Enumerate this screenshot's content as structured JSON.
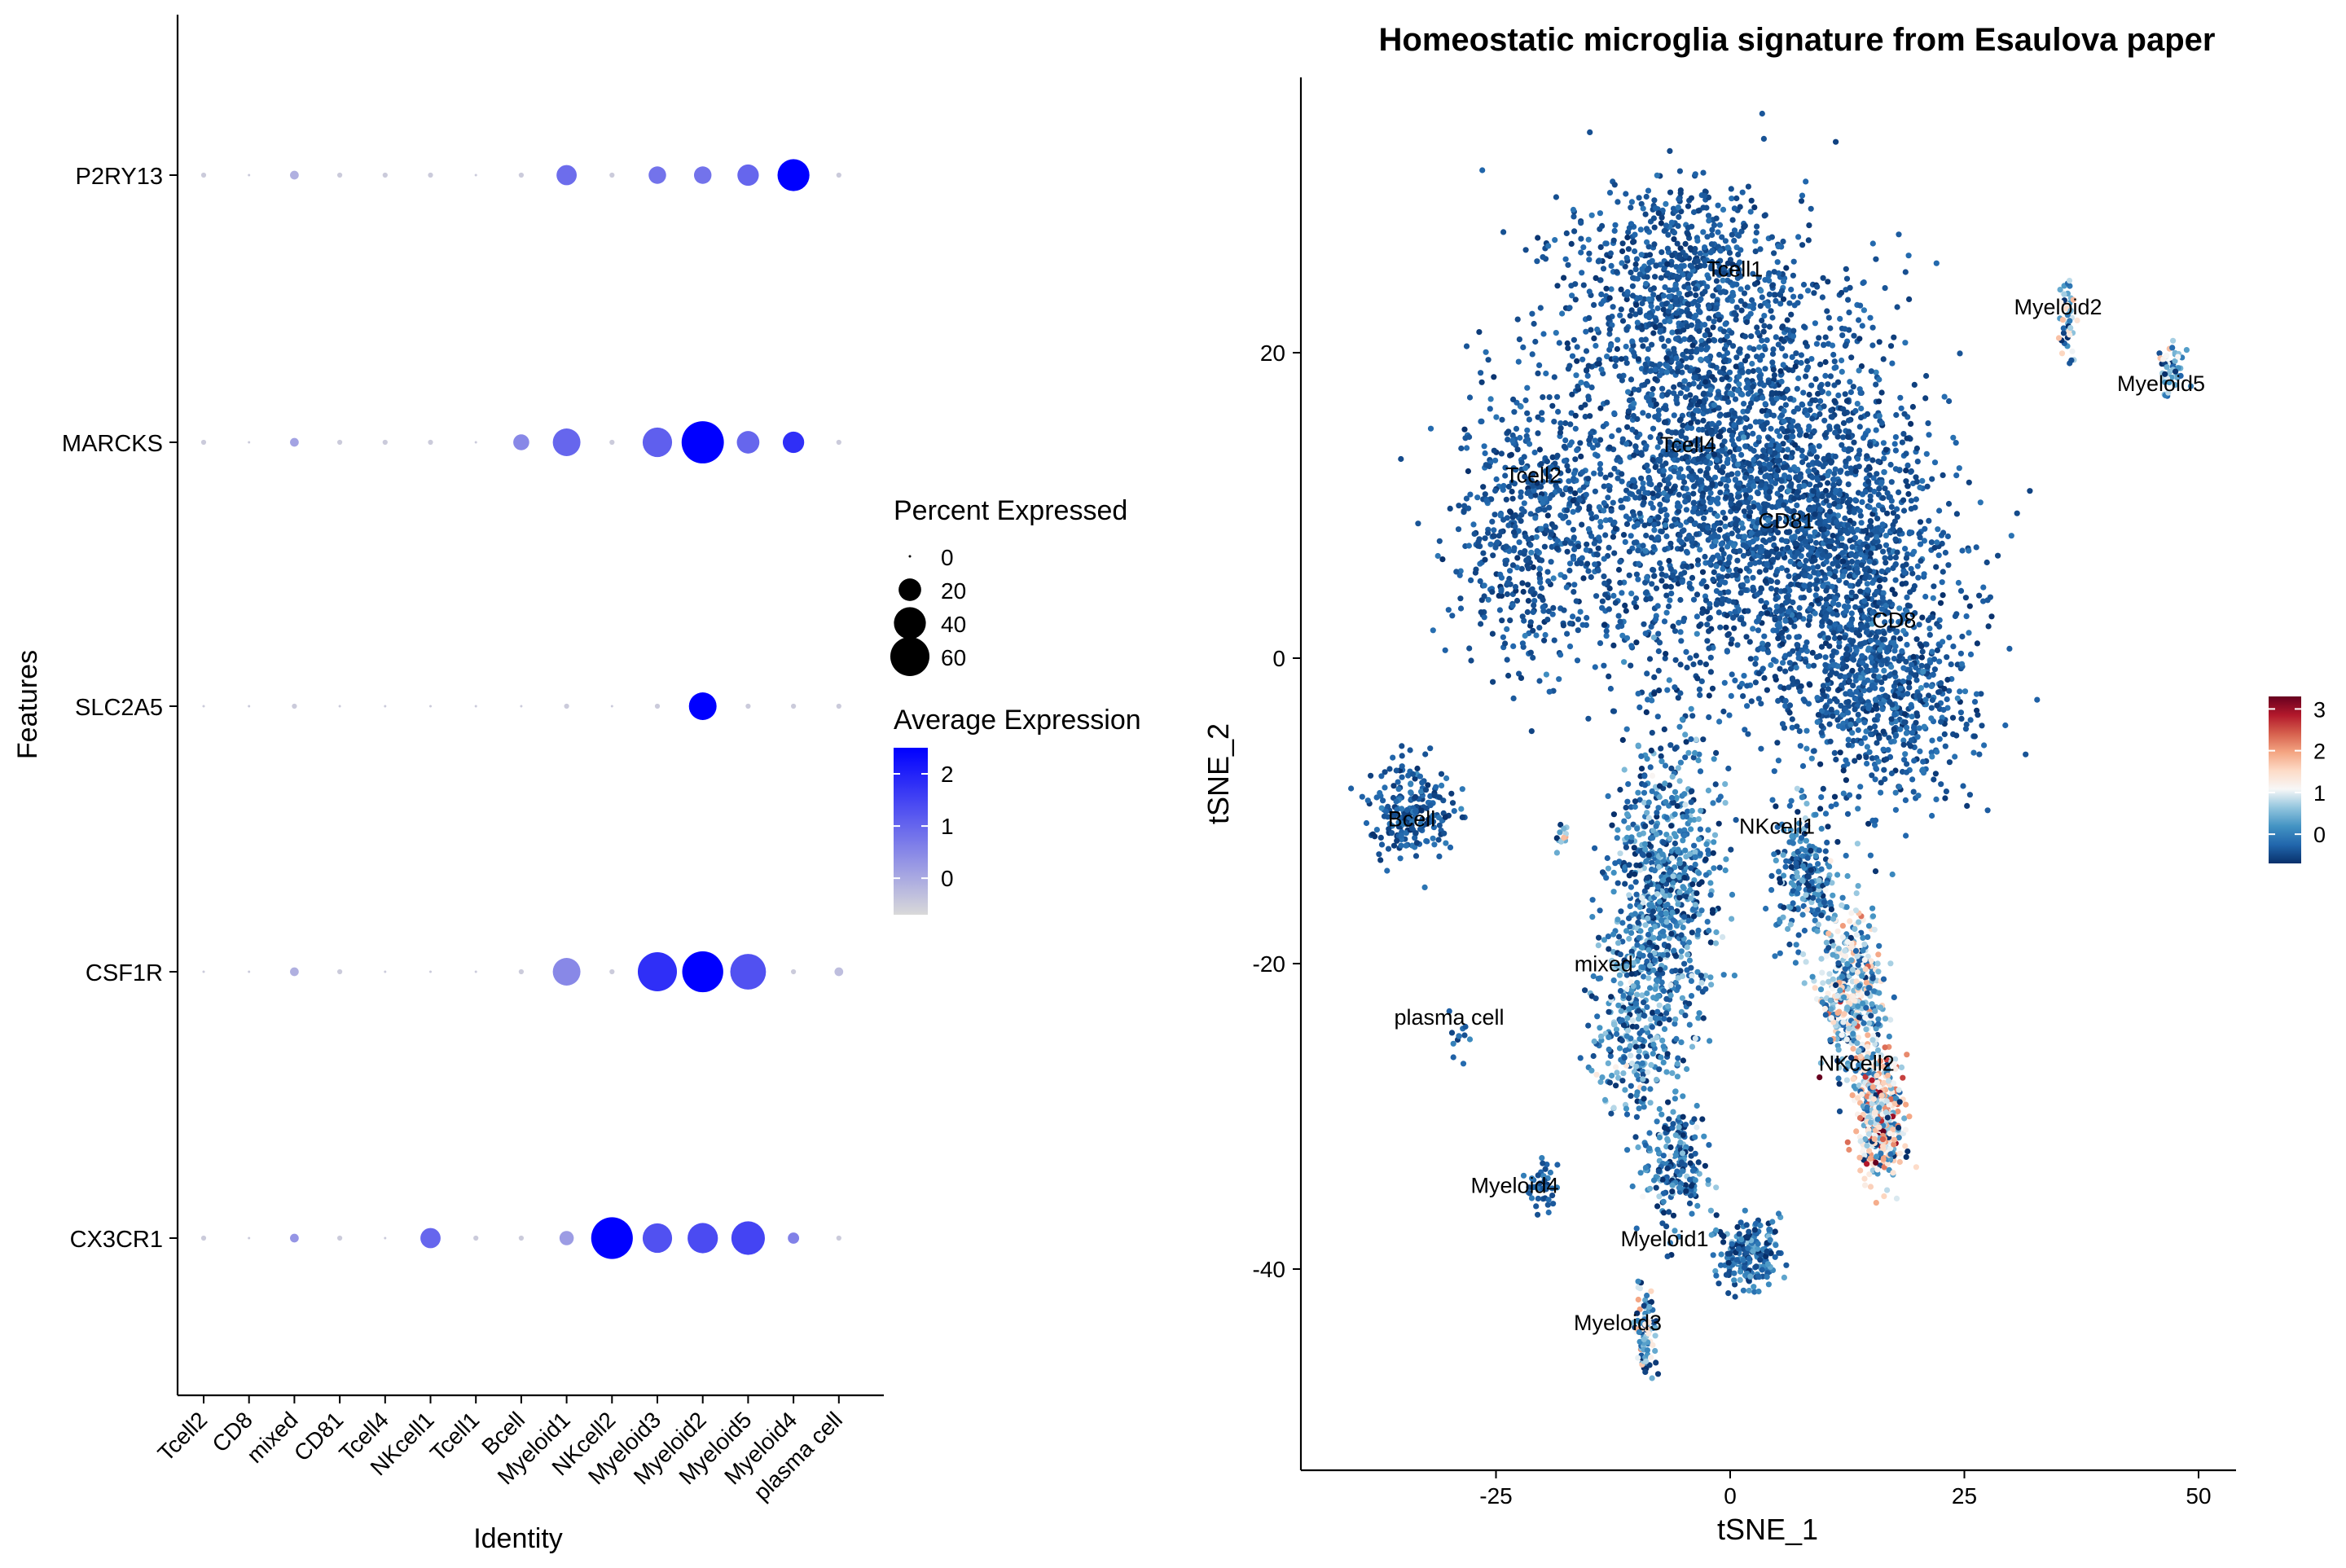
{
  "chart_data": [
    {
      "type": "dotplot",
      "xlabel": "Identity",
      "ylabel": "Features",
      "categories": [
        "Tcell2",
        "CD8",
        "mixed",
        "CD81",
        "Tcell4",
        "NKcell1",
        "Tcell1",
        "Bcell",
        "Myeloid1",
        "NKcell2",
        "Myeloid3",
        "Myeloid2",
        "Myeloid5",
        "Myeloid4",
        "plasma cell"
      ],
      "features": [
        "P2RY13",
        "MARCKS",
        "SLC2A5",
        "CSF1R",
        "CX3CR1"
      ],
      "legend_size": {
        "title": "Percent Expressed",
        "values": [
          0,
          20,
          40,
          60
        ]
      },
      "legend_color": {
        "title": "Average Expression",
        "ticks": [
          2,
          1,
          0
        ],
        "range": [
          -0.7,
          2.5
        ],
        "low_color": "#d9d9d9",
        "high_color": "#0000ff"
      },
      "points": [
        {
          "feature": "P2RY13",
          "cells": [
            [
              1,
              -0.5
            ],
            [
              0,
              -0.5
            ],
            [
              3,
              -0.1
            ],
            [
              1,
              -0.5
            ],
            [
              1,
              -0.5
            ],
            [
              1,
              -0.5
            ],
            [
              0,
              -0.5
            ],
            [
              1,
              -0.5
            ],
            [
              16,
              0.9
            ],
            [
              1,
              -0.5
            ],
            [
              12,
              0.8
            ],
            [
              12,
              0.8
            ],
            [
              18,
              1.0
            ],
            [
              40,
              2.5
            ],
            [
              1,
              -0.5
            ]
          ]
        },
        {
          "feature": "MARCKS",
          "cells": [
            [
              1,
              -0.5
            ],
            [
              0,
              -0.5
            ],
            [
              3,
              0.1
            ],
            [
              1,
              -0.5
            ],
            [
              1,
              -0.5
            ],
            [
              1,
              -0.5
            ],
            [
              0,
              -0.5
            ],
            [
              10,
              0.5
            ],
            [
              30,
              1.0
            ],
            [
              1,
              -0.5
            ],
            [
              34,
              1.1
            ],
            [
              70,
              2.5
            ],
            [
              20,
              1.0
            ],
            [
              18,
              1.8
            ],
            [
              1,
              -0.5
            ]
          ]
        },
        {
          "feature": "SLC2A5",
          "cells": [
            [
              0,
              -0.5
            ],
            [
              0,
              -0.5
            ],
            [
              1,
              -0.5
            ],
            [
              0,
              -0.5
            ],
            [
              0,
              -0.5
            ],
            [
              0,
              -0.5
            ],
            [
              0,
              -0.5
            ],
            [
              0,
              -0.5
            ],
            [
              1,
              -0.5
            ],
            [
              0,
              -0.5
            ],
            [
              1,
              -0.5
            ],
            [
              30,
              2.5
            ],
            [
              1,
              -0.5
            ],
            [
              1,
              -0.5
            ],
            [
              1,
              -0.5
            ]
          ]
        },
        {
          "feature": "CSF1R",
          "cells": [
            [
              0,
              -0.5
            ],
            [
              0,
              -0.5
            ],
            [
              3,
              -0.1
            ],
            [
              1,
              -0.5
            ],
            [
              0,
              -0.5
            ],
            [
              0,
              -0.5
            ],
            [
              0,
              -0.5
            ],
            [
              1,
              -0.5
            ],
            [
              30,
              0.5
            ],
            [
              1,
              -0.5
            ],
            [
              60,
              1.8
            ],
            [
              66,
              2.5
            ],
            [
              50,
              1.3
            ],
            [
              1,
              -0.5
            ],
            [
              3,
              -0.3
            ]
          ]
        },
        {
          "feature": "CX3CR1",
          "cells": [
            [
              1,
              -0.5
            ],
            [
              0,
              -0.5
            ],
            [
              3,
              0.3
            ],
            [
              1,
              -0.5
            ],
            [
              0,
              -0.5
            ],
            [
              16,
              1.0
            ],
            [
              1,
              -0.5
            ],
            [
              1,
              -0.5
            ],
            [
              8,
              0.2
            ],
            [
              68,
              2.5
            ],
            [
              34,
              1.3
            ],
            [
              36,
              1.4
            ],
            [
              44,
              1.5
            ],
            [
              5,
              0.6
            ],
            [
              1,
              -0.5
            ]
          ]
        }
      ]
    },
    {
      "type": "scatter",
      "title": "Homeostatic microglia signature from Esaulova paper",
      "xlabel": "tSNE_1",
      "ylabel": "tSNE_2",
      "xlim": [
        -45,
        55
      ],
      "ylim": [
        -53,
        38
      ],
      "xticks": [
        -25,
        0,
        25,
        50
      ],
      "yticks": [
        20,
        0,
        -20,
        -40
      ],
      "colorbar": {
        "ticks": [
          3,
          2,
          1,
          0
        ],
        "range": [
          -0.7,
          3.3
        ],
        "colors": [
          "#08306b",
          "#2166ac",
          "#4393c3",
          "#92c5de",
          "#f7f7f7",
          "#fddbc7",
          "#f4a582",
          "#d6604d",
          "#b2182b",
          "#67001f"
        ]
      },
      "cluster_labels": [
        {
          "label": "Tcell1",
          "x": 0.5,
          "y": 25
        },
        {
          "label": "Myeloid2",
          "x": 35,
          "y": 22.5
        },
        {
          "label": "Myeloid5",
          "x": 46,
          "y": 17.5
        },
        {
          "label": "Tcell4",
          "x": -4.5,
          "y": 13.5
        },
        {
          "label": "Tcell2",
          "x": -21,
          "y": 11.5
        },
        {
          "label": "CD81",
          "x": 6,
          "y": 8.5
        },
        {
          "label": "CD8",
          "x": 17.5,
          "y": 2
        },
        {
          "label": "Bcell",
          "x": -34,
          "y": -11
        },
        {
          "label": "NKcell1",
          "x": 5,
          "y": -11.5
        },
        {
          "label": "mixed",
          "x": -13.5,
          "y": -20.5
        },
        {
          "label": "plasma cell",
          "x": -30,
          "y": -24
        },
        {
          "label": "NKcell2",
          "x": 13.5,
          "y": -27
        },
        {
          "label": "Myeloid4",
          "x": -23,
          "y": -35
        },
        {
          "label": "Myeloid1",
          "x": -7,
          "y": -38.5
        },
        {
          "label": "Myeloid3",
          "x": -12,
          "y": -44
        }
      ]
    }
  ]
}
